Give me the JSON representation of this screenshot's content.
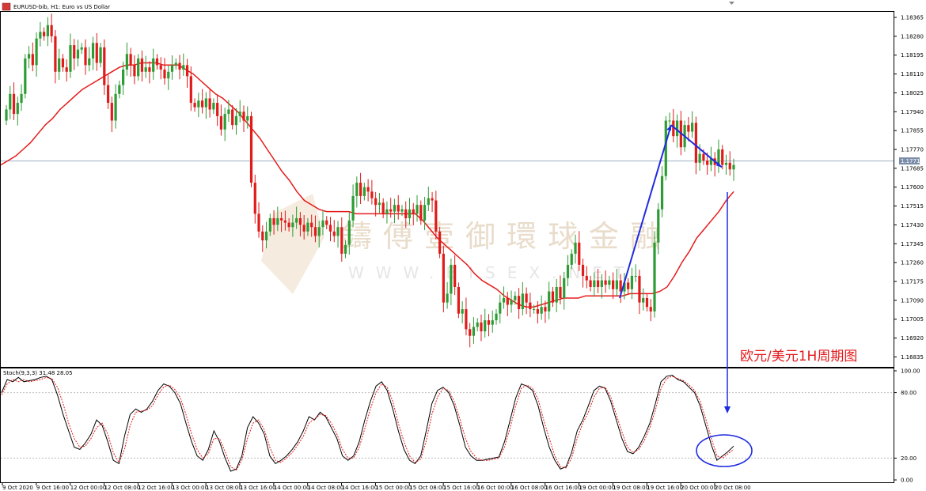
{
  "window": {
    "title": "EURUSD-bib, H1:  Euro vs US Dollar"
  },
  "stoch_label": "Stoch(9,3,3) 31.48 28.05",
  "annotation": "欧元/美元1H周期图",
  "watermark": {
    "line1": "鑄傅壹御環球金融",
    "line2": "WWW.BISEX.NET"
  },
  "colors": {
    "bull": "#2e9c34",
    "bear": "#e01b1b",
    "ma": "#e51b1b",
    "arrow": "#1f2be0",
    "stoch_main": "#000000",
    "stoch_signal": "#e51b1b"
  },
  "chart_data": [
    {
      "type": "candlestick",
      "title": "EURUSD-bib, H1:  Euro vs US Dollar",
      "current_price": 1.17718,
      "y_ticks": [
        "1.18365",
        "1.18280",
        "1.18195",
        "1.18110",
        "1.18025",
        "1.17940",
        "1.17855",
        "1.17770",
        "1.17685",
        "1.17600",
        "1.17515",
        "1.17430",
        "1.17345",
        "1.17260",
        "1.17175",
        "1.17090",
        "1.17005",
        "1.16920",
        "1.16835"
      ],
      "ylim": [
        1.1679,
        1.1839
      ],
      "x_ticks": [
        "9 Oct 2020",
        "9 Oct 16:00",
        "12 Oct 00:00",
        "12 Oct 08:00",
        "12 Oct 16:00",
        "13 Oct 00:00",
        "13 Oct 08:00",
        "13 Oct 16:00",
        "14 Oct 00:00",
        "14 Oct 08:00",
        "14 Oct 16:00",
        "15 Oct 00:00",
        "15 Oct 08:00",
        "15 Oct 16:00",
        "16 Oct 00:00",
        "16 Oct 08:00",
        "16 Oct 16:00",
        "19 Oct 00:00",
        "19 Oct 08:00",
        "19 Oct 16:00",
        "20 Oct 00:00",
        "20 Oct 08:00"
      ],
      "close": [
        1.1795,
        1.1802,
        1.1793,
        1.1798,
        1.1802,
        1.1818,
        1.182,
        1.1815,
        1.1827,
        1.183,
        1.1828,
        1.1833,
        1.1828,
        1.1812,
        1.1818,
        1.1814,
        1.1812,
        1.1824,
        1.1818,
        1.1822,
        1.1823,
        1.1815,
        1.1818,
        1.1825,
        1.1816,
        1.1823,
        1.1806,
        1.1798,
        1.179,
        1.1802,
        1.1806,
        1.1813,
        1.182,
        1.1815,
        1.181,
        1.1818,
        1.1812,
        1.1814,
        1.1812,
        1.1818,
        1.1815,
        1.1813,
        1.1809,
        1.1812,
        1.1815,
        1.1816,
        1.1813,
        1.1815,
        1.181,
        1.1798,
        1.1796,
        1.1799,
        1.1796,
        1.18,
        1.1795,
        1.1798,
        1.1792,
        1.1786,
        1.1793,
        1.1795,
        1.1788,
        1.1792,
        1.1794,
        1.179,
        1.1792,
        1.1762,
        1.1748,
        1.174,
        1.1736,
        1.174,
        1.1746,
        1.1743,
        1.1746,
        1.1745,
        1.1744,
        1.1742,
        1.1744,
        1.1746,
        1.1743,
        1.174,
        1.1744,
        1.1742,
        1.1738,
        1.1742,
        1.1745,
        1.1743,
        1.174,
        1.1738,
        1.1742,
        1.173,
        1.1734,
        1.1745,
        1.1756,
        1.1762,
        1.1756,
        1.176,
        1.1758,
        1.1755,
        1.1752,
        1.1753,
        1.1748,
        1.175,
        1.1749,
        1.1752,
        1.1749,
        1.175,
        1.1746,
        1.175,
        1.1748,
        1.1752,
        1.1745,
        1.1752,
        1.1755,
        1.1754,
        1.174,
        1.173,
        1.1708,
        1.1712,
        1.1725,
        1.1715,
        1.1703,
        1.1705,
        1.1696,
        1.1693,
        1.1697,
        1.1699,
        1.1695,
        1.17,
        1.1698,
        1.17,
        1.1703,
        1.1708,
        1.171,
        1.1707,
        1.1709,
        1.1711,
        1.1705,
        1.1712,
        1.1708,
        1.1705,
        1.1705,
        1.1703,
        1.1706,
        1.1704,
        1.1713,
        1.1708,
        1.1715,
        1.171,
        1.1719,
        1.1725,
        1.173,
        1.1735,
        1.1725,
        1.172,
        1.1718,
        1.1715,
        1.1718,
        1.1715,
        1.1718,
        1.1716,
        1.1718,
        1.1714,
        1.1718,
        1.1713,
        1.1717,
        1.1714,
        1.172,
        1.172,
        1.1708,
        1.171,
        1.1706,
        1.1704,
        1.1735,
        1.175,
        1.1765,
        1.179,
        1.179,
        1.1783,
        1.179,
        1.1778,
        1.1788,
        1.1785,
        1.1789,
        1.1771,
        1.1775,
        1.1772,
        1.177,
        1.1773,
        1.177,
        1.1777,
        1.177,
        1.1771,
        1.1768,
        1.177
      ],
      "ma_close": [
        1.177,
        1.1772,
        1.1774,
        1.1777,
        1.178,
        1.1784,
        1.1788,
        1.1791,
        1.1795,
        1.1798,
        1.1801,
        1.1804,
        1.1806,
        1.1808,
        1.181,
        1.1812,
        1.1814,
        1.1815,
        1.1815,
        1.1816,
        1.1816,
        1.1816,
        1.1815,
        1.1815,
        1.1815,
        1.1813,
        1.1811,
        1.1808,
        1.1805,
        1.1802,
        1.18,
        1.1797,
        1.1794,
        1.179,
        1.1786,
        1.1782,
        1.1777,
        1.1772,
        1.1767,
        1.1763,
        1.1758,
        1.1754,
        1.1752,
        1.175,
        1.1749,
        1.1749,
        1.1749,
        1.1749,
        1.1748,
        1.1748,
        1.1748,
        1.1748,
        1.1748,
        1.1748,
        1.1748,
        1.1748,
        1.1748,
        1.1745,
        1.1741,
        1.1737,
        1.1734,
        1.1731,
        1.1728,
        1.1725,
        1.1721,
        1.1718,
        1.1716,
        1.1714,
        1.1711,
        1.1709,
        1.1707,
        1.1706,
        1.1706,
        1.1707,
        1.1708,
        1.1709,
        1.171,
        1.171,
        1.171,
        1.1711,
        1.1711,
        1.1711,
        1.1711,
        1.1711,
        1.1711,
        1.1712,
        1.1712,
        1.1712,
        1.1712,
        1.1713,
        1.1715,
        1.172,
        1.1726,
        1.1731,
        1.1737,
        1.1741,
        1.1745,
        1.1749,
        1.1754,
        1.1758
      ],
      "arrows": [
        {
          "from": [
            1.171
          ],
          "to": [
            1.1788
          ]
        },
        {
          "from": [
            1.1788
          ],
          "to": [
            1.1769
          ]
        }
      ]
    },
    {
      "type": "line",
      "title": "Stoch(9,3,3) 31.48 28.05",
      "y_ticks": [
        "100.00",
        "80.00",
        "20.00",
        "0.00"
      ],
      "ylim": [
        0,
        100
      ],
      "series": [
        {
          "values": [
            80,
            92,
            90,
            94,
            90,
            91,
            92,
            94,
            95,
            92,
            78,
            60,
            45,
            30,
            28,
            34,
            42,
            55,
            50,
            35,
            18,
            15,
            40,
            60,
            65,
            62,
            65,
            72,
            82,
            88,
            86,
            80,
            70,
            52,
            35,
            22,
            18,
            28,
            45,
            35,
            20,
            8,
            10,
            22,
            48,
            58,
            52,
            42,
            22,
            15,
            18,
            22,
            28,
            35,
            45,
            58,
            55,
            62,
            58,
            48,
            38,
            22,
            18,
            22,
            35,
            55,
            72,
            86,
            90,
            82,
            65,
            45,
            28,
            18,
            15,
            22,
            45,
            70,
            82,
            85,
            80,
            68,
            50,
            30,
            22,
            18,
            18,
            19,
            20,
            21,
            35,
            55,
            75,
            88,
            86,
            82,
            68,
            48,
            30,
            18,
            10,
            12,
            25,
            45,
            55,
            68,
            82,
            86,
            84,
            72,
            55,
            38,
            26,
            24,
            30,
            40,
            52,
            70,
            90,
            95,
            96,
            92,
            90,
            85,
            80,
            68,
            50,
            32,
            18,
            22,
            26,
            31
          ]
        },
        {
          "values": [
            78,
            88,
            92,
            90,
            92,
            90,
            91,
            92,
            94,
            93,
            85,
            70,
            52,
            38,
            30,
            31,
            38,
            48,
            52,
            42,
            25,
            16,
            28,
            50,
            62,
            63,
            64,
            68,
            78,
            85,
            87,
            83,
            75,
            60,
            42,
            28,
            20,
            24,
            38,
            38,
            26,
            12,
            9,
            18,
            38,
            52,
            55,
            46,
            30,
            18,
            16,
            20,
            25,
            32,
            40,
            52,
            56,
            60,
            59,
            52,
            42,
            28,
            20,
            20,
            30,
            47,
            65,
            80,
            88,
            85,
            72,
            52,
            35,
            22,
            16,
            19,
            36,
            60,
            76,
            84,
            82,
            72,
            56,
            38,
            26,
            20,
            18,
            18,
            19,
            20,
            30,
            48,
            68,
            84,
            87,
            84,
            74,
            55,
            38,
            22,
            12,
            11,
            20,
            38,
            52,
            62,
            76,
            84,
            85,
            76,
            60,
            44,
            30,
            25,
            28,
            36,
            48,
            64,
            84,
            93,
            95,
            93,
            91,
            87,
            82,
            72,
            56,
            38,
            22,
            20,
            24,
            28
          ]
        }
      ]
    }
  ]
}
